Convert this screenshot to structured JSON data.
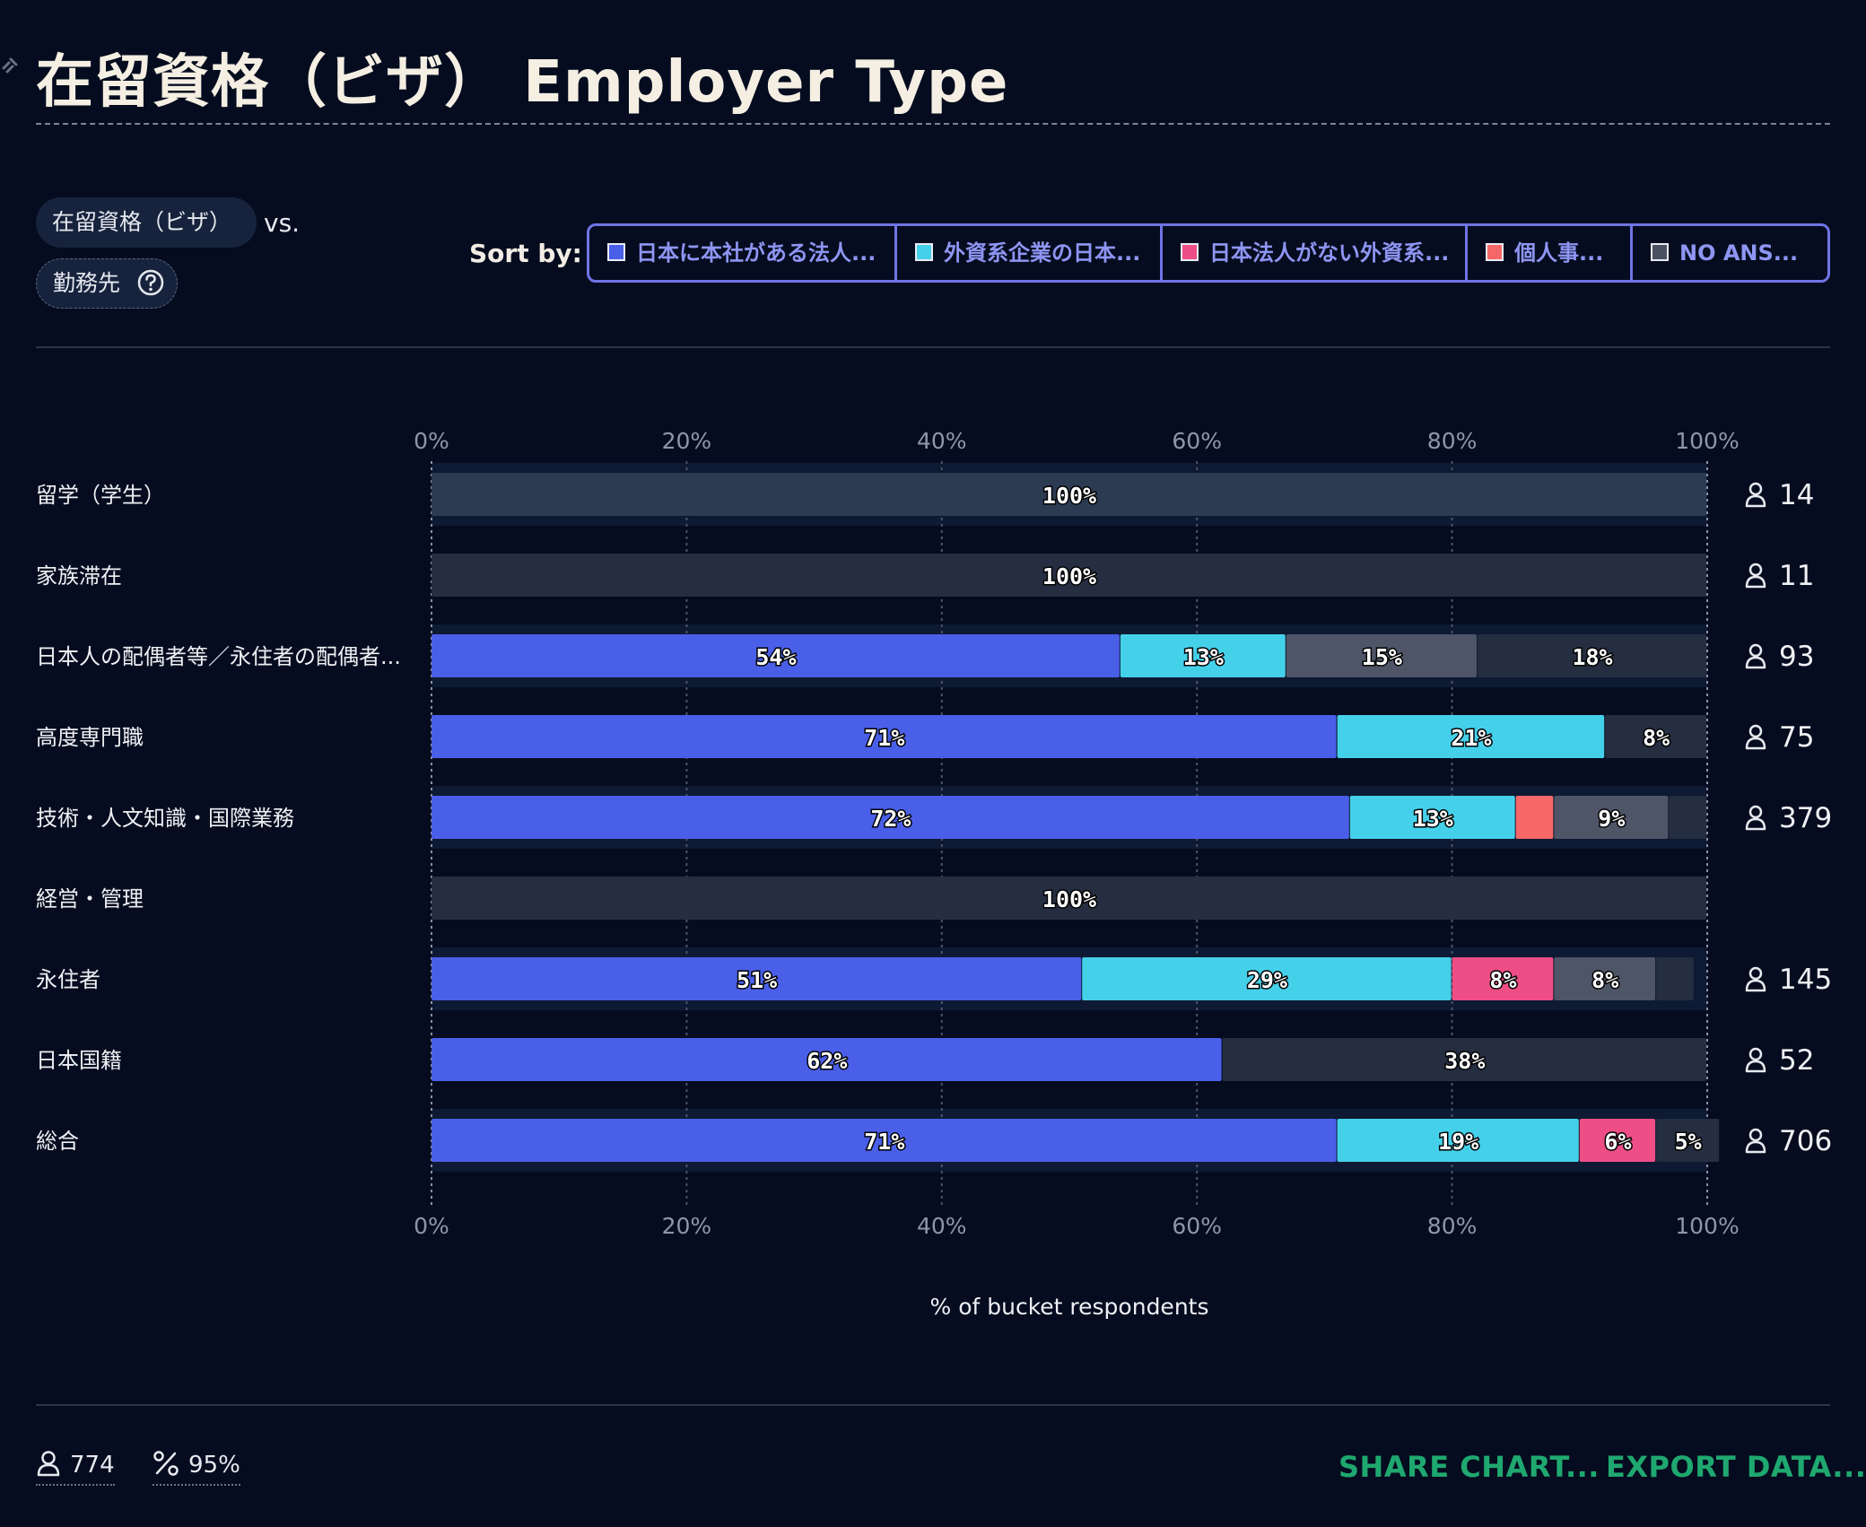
{
  "header": {
    "title": "在留資格（ビザ） Employer Type"
  },
  "controls": {
    "compare_a": "在留資格（ビザ）",
    "vs_label": "vs.",
    "compare_b": "勤務先",
    "sort_label": "Sort by:",
    "sort_options": [
      {
        "label": "日本に本社がある法人...",
        "color": "#4a5fe8"
      },
      {
        "label": "外資系企業の日本...",
        "color": "#45d0ea"
      },
      {
        "label": "日本法人がない外資系...",
        "color": "#ee4d86"
      },
      {
        "label": "個人事...",
        "color": "#f76767"
      },
      {
        "label": "NO ANS...",
        "color": "#4a5262"
      }
    ]
  },
  "chart_data": {
    "type": "bar",
    "orientation": "horizontal",
    "stacked": true,
    "xlabel": "% of bucket respondents",
    "xlim": [
      0,
      100
    ],
    "xticks": [
      "0%",
      "20%",
      "40%",
      "60%",
      "80%",
      "100%"
    ],
    "categories": [
      "留学（学生）",
      "家族滞在",
      "日本人の配偶者等／永住者の配偶者...",
      "高度専門職",
      "技術・人文知識・国際業務",
      "経営・管理",
      "永住者",
      "日本国籍",
      "総合"
    ],
    "counts": [
      "14",
      "11",
      "93",
      "75",
      "379",
      "",
      "145",
      "52",
      "706"
    ],
    "series": [
      {
        "name": "日本に本社がある法人...",
        "color": "#4a5fe8",
        "values": [
          0,
          0,
          54,
          71,
          72,
          0,
          51,
          62,
          71
        ],
        "labels": [
          "",
          "",
          "54%",
          "71%",
          "72%",
          "",
          "51%",
          "62%",
          "71%"
        ]
      },
      {
        "name": "外資系企業の日本...",
        "color": "#45d0ea",
        "values": [
          0,
          0,
          13,
          21,
          13,
          0,
          29,
          0,
          19
        ],
        "labels": [
          "",
          "",
          "13%",
          "21%",
          "13%",
          "",
          "29%",
          "",
          "19%"
        ]
      },
      {
        "name": "日本法人がない外資系...",
        "color": "#ee4d86",
        "values": [
          0,
          0,
          0,
          0,
          0,
          0,
          8,
          0,
          6
        ],
        "labels": [
          "",
          "",
          "",
          "",
          "",
          "",
          "8%",
          "",
          "6%"
        ]
      },
      {
        "name": "個人事...",
        "color": "#f76767",
        "values": [
          0,
          0,
          0,
          0,
          3,
          0,
          0,
          0,
          0
        ],
        "labels": [
          "",
          "",
          "",
          "",
          "",
          "",
          "",
          "",
          ""
        ]
      },
      {
        "name": "",
        "color": "#4e5567",
        "values": [
          0,
          0,
          15,
          0,
          9,
          0,
          8,
          0,
          0
        ],
        "labels": [
          "",
          "",
          "15%",
          "",
          "9%",
          "",
          "8%",
          "",
          ""
        ]
      },
      {
        "name": "",
        "color": "#252e40",
        "values": [
          0,
          100,
          18,
          8,
          3,
          100,
          3,
          38,
          5
        ],
        "labels": [
          "",
          "100%",
          "18%",
          "8%",
          "",
          "100%",
          "",
          "38%",
          "5%"
        ]
      },
      {
        "name": "",
        "color": "#2c3a52",
        "values": [
          100,
          0,
          0,
          0,
          0,
          0,
          0,
          0,
          0
        ],
        "labels": [
          "100%",
          "",
          "",
          "",
          "",
          "",
          "",
          "",
          ""
        ]
      }
    ]
  },
  "footer": {
    "respondents": "774",
    "percent": "95%",
    "share_label": "SHARE CHART...",
    "export_label": "EXPORT DATA..."
  }
}
